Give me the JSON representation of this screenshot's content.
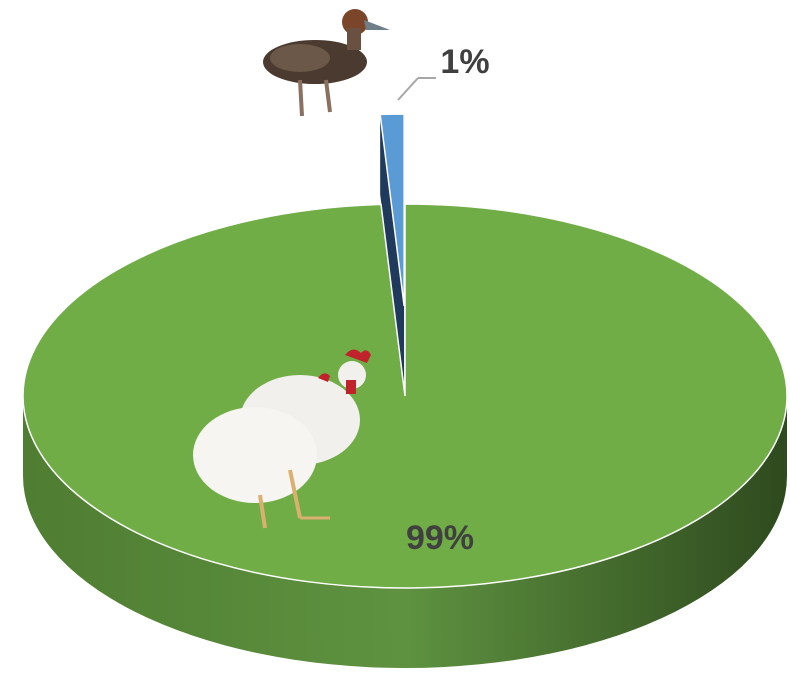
{
  "chart_data": {
    "type": "pie",
    "values": [
      1,
      99
    ],
    "value_labels": [
      "1%",
      "99%"
    ],
    "colors": [
      "#5b9bd5",
      "#70ad47"
    ]
  }
}
